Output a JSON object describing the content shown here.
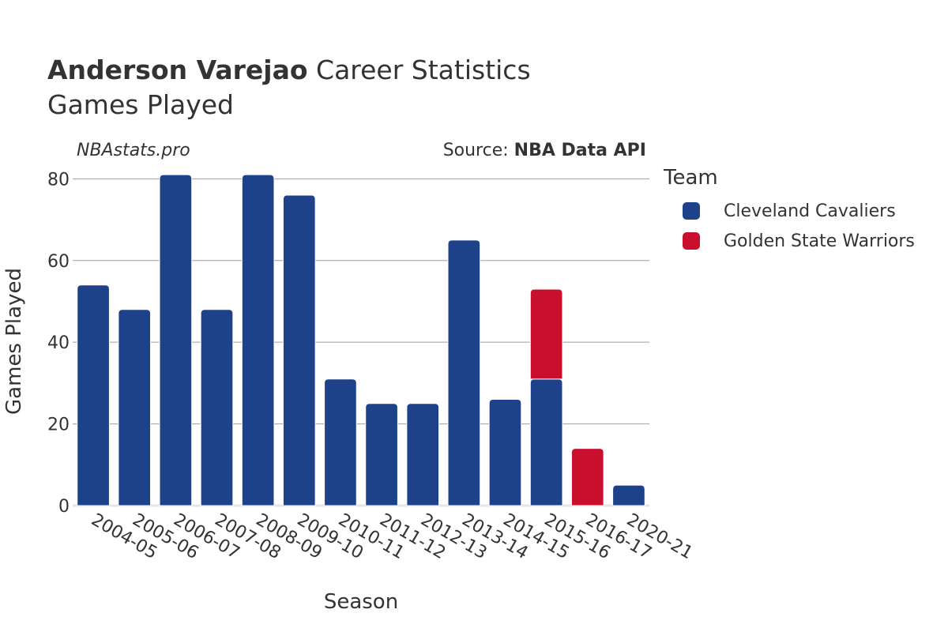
{
  "header": {
    "title_bold": "Anderson Varejao",
    "title_rest": " Career Statistics",
    "subtitle": "Games Played",
    "watermark": "NBAstats.pro",
    "source_prefix": "Source: ",
    "source_name": "NBA Data API"
  },
  "legend": {
    "title": "Team",
    "items": [
      {
        "label": "Cleveland Cavaliers",
        "color": "#1d428a"
      },
      {
        "label": "Golden State Warriors",
        "color": "#c8102e"
      }
    ]
  },
  "chart_data": {
    "type": "bar",
    "stacked": true,
    "xlabel": "Season",
    "ylabel": "Games Played",
    "ylim": [
      0,
      82
    ],
    "yticks": [
      0,
      20,
      40,
      60,
      80
    ],
    "grid": true,
    "legend_position": "right",
    "categories": [
      "2004-05",
      "2005-06",
      "2006-07",
      "2007-08",
      "2008-09",
      "2009-10",
      "2010-11",
      "2011-12",
      "2012-13",
      "2013-14",
      "2014-15",
      "2015-16",
      "2016-17",
      "2020-21"
    ],
    "series": [
      {
        "name": "Cleveland Cavaliers",
        "color": "#1d428a",
        "values": [
          54,
          48,
          81,
          48,
          81,
          76,
          31,
          25,
          25,
          65,
          26,
          31,
          0,
          5
        ]
      },
      {
        "name": "Golden State Warriors",
        "color": "#c8102e",
        "values": [
          0,
          0,
          0,
          0,
          0,
          0,
          0,
          0,
          0,
          0,
          0,
          22,
          14,
          0
        ]
      }
    ]
  }
}
